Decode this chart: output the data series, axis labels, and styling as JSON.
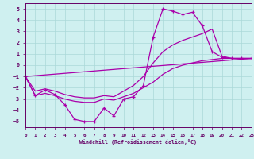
{
  "xlabel": "Windchill (Refroidissement éolien,°C)",
  "xlim": [
    0,
    23
  ],
  "ylim": [
    -5.5,
    5.5
  ],
  "yticks": [
    -5,
    -4,
    -3,
    -2,
    -1,
    0,
    1,
    2,
    3,
    4,
    5
  ],
  "xticks": [
    0,
    1,
    2,
    3,
    4,
    5,
    6,
    7,
    8,
    9,
    10,
    11,
    12,
    13,
    14,
    15,
    16,
    17,
    18,
    19,
    20,
    21,
    22,
    23
  ],
  "bg_color": "#cff0f0",
  "grid_color": "#aad8d8",
  "line_color": "#aa00aa",
  "line1_x": [
    0,
    1,
    2,
    3,
    4,
    5,
    6,
    7,
    8,
    9,
    10,
    11,
    12,
    13,
    14,
    15,
    16,
    17,
    18,
    19,
    20,
    21,
    22,
    23
  ],
  "line1_y": [
    -1.0,
    -2.7,
    -2.2,
    -2.6,
    -3.5,
    -4.8,
    -5.0,
    -5.0,
    -3.8,
    -4.5,
    -3.0,
    -2.8,
    -1.8,
    2.5,
    5.0,
    4.8,
    4.5,
    4.7,
    3.5,
    1.2,
    0.7,
    0.6,
    0.6,
    0.6
  ],
  "line2_x": [
    0,
    23
  ],
  "line2_y": [
    -1.0,
    0.6
  ],
  "line3_x": [
    0,
    1,
    2,
    3,
    4,
    5,
    6,
    7,
    8,
    9,
    10,
    11,
    12,
    13,
    14,
    15,
    16,
    17,
    18,
    19,
    20,
    21,
    22,
    23
  ],
  "line3_y": [
    -1.0,
    -2.3,
    -2.1,
    -2.3,
    -2.6,
    -2.8,
    -2.9,
    -2.9,
    -2.7,
    -2.8,
    -2.3,
    -1.8,
    -1.0,
    0.2,
    1.2,
    1.8,
    2.2,
    2.5,
    2.8,
    3.2,
    0.8,
    0.6,
    0.6,
    0.6
  ],
  "line4_x": [
    0,
    1,
    2,
    3,
    4,
    5,
    6,
    7,
    8,
    9,
    10,
    11,
    12,
    13,
    14,
    15,
    16,
    17,
    18,
    19,
    20,
    21,
    22,
    23
  ],
  "line4_y": [
    -1.0,
    -2.7,
    -2.5,
    -2.7,
    -3.0,
    -3.2,
    -3.3,
    -3.3,
    -3.0,
    -3.1,
    -2.8,
    -2.5,
    -2.0,
    -1.5,
    -0.8,
    -0.3,
    0.0,
    0.2,
    0.4,
    0.5,
    0.6,
    0.6,
    0.6,
    0.6
  ]
}
